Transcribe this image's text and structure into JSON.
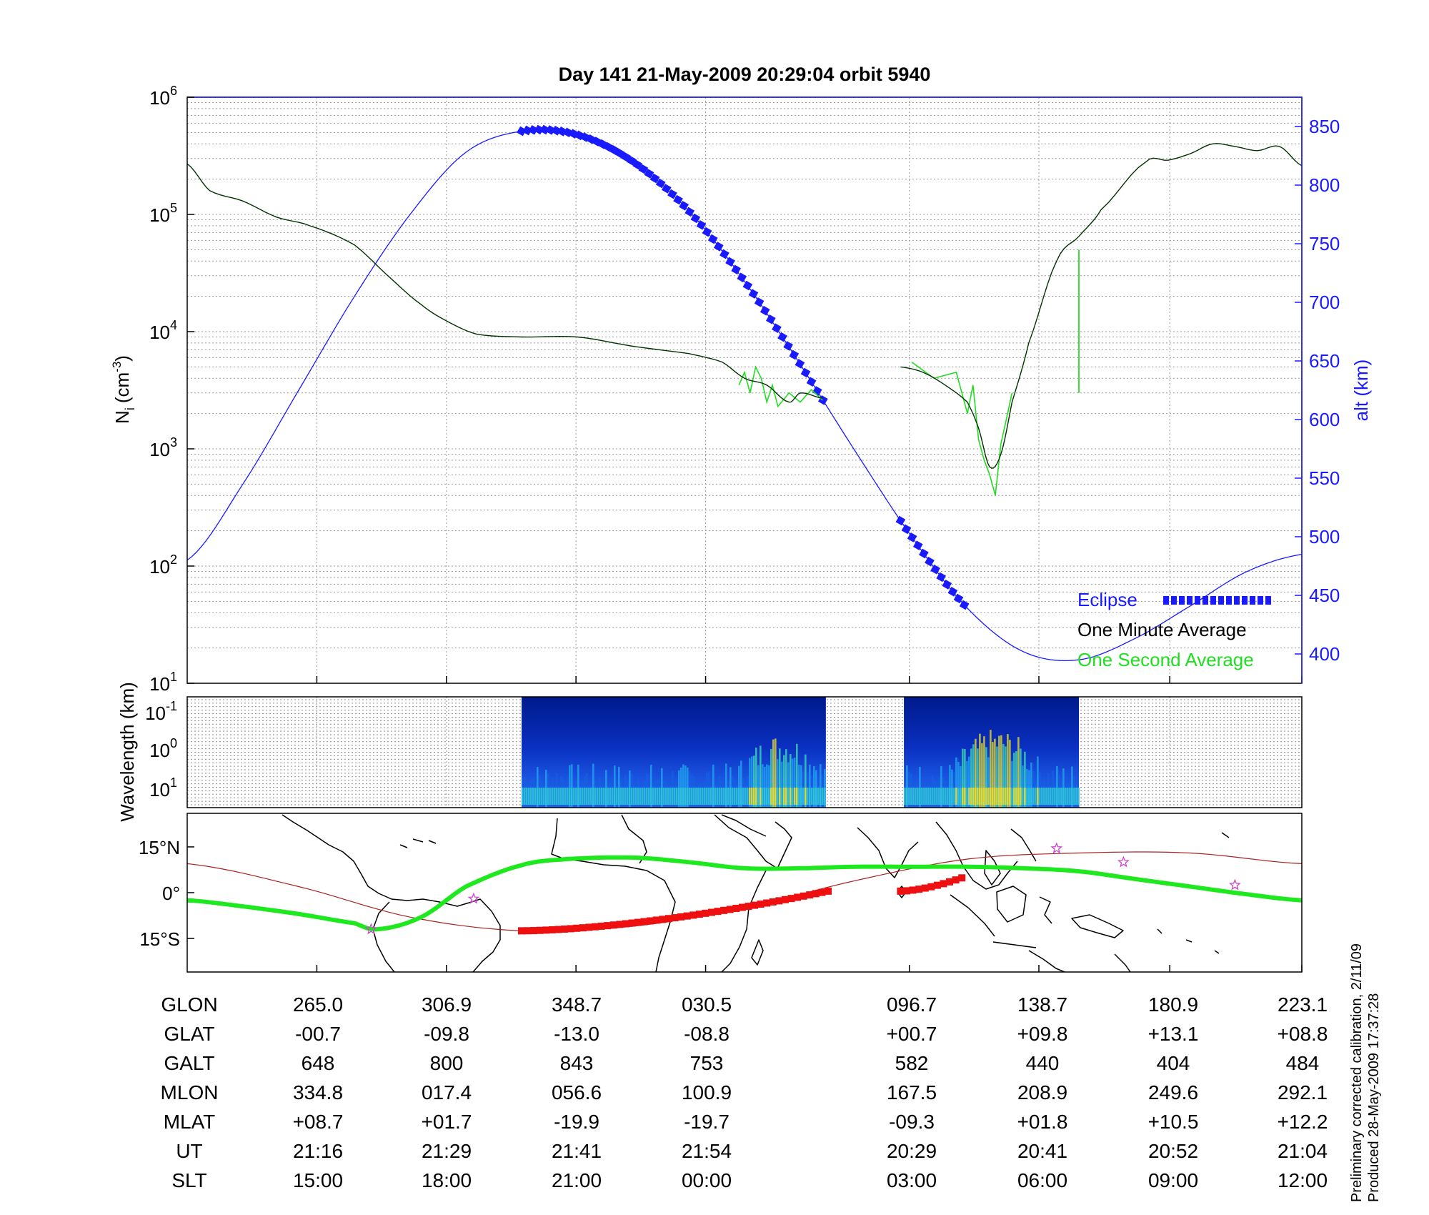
{
  "title": "Day 141  21-May-2009 20:29:04   orbit 5940",
  "colors": {
    "eclipse": "#1a1aff",
    "alt_line": "#1a1aff",
    "minute_avg": "#003300",
    "second_avg": "#22dd22",
    "track_green": "#1ee81e",
    "track_red": "#ee1010",
    "equator": "#aa2222",
    "star": "#cc44cc"
  },
  "chart_data": [
    {
      "type": "line",
      "ylabel_main": "N",
      "ylabel_sub": "i",
      "ylabel_unit_pre": "(cm",
      "ylabel_unit_exp": "-3",
      "ylabel_unit_post": ")",
      "yscale": "log",
      "ylim": [
        10,
        1000000
      ],
      "yticks": [
        {
          "base": "10",
          "exp": "6",
          "value": 1000000
        },
        {
          "base": "10",
          "exp": "5",
          "value": 100000
        },
        {
          "base": "10",
          "exp": "4",
          "value": 10000
        },
        {
          "base": "10",
          "exp": "3",
          "value": 1000
        },
        {
          "base": "10",
          "exp": "2",
          "value": 100
        },
        {
          "base": "10",
          "exp": "1",
          "value": 10
        }
      ],
      "y2label": "alt (km)",
      "y2lim": [
        375,
        875
      ],
      "y2ticks": [
        "850",
        "800",
        "750",
        "700",
        "650",
        "600",
        "550",
        "500",
        "450",
        "400"
      ],
      "xlim": [
        0,
        1
      ],
      "xticks": [
        0.1163,
        0.2326,
        0.3488,
        0.4651,
        0.6479,
        0.7641,
        0.8815,
        1.0
      ],
      "grid": true,
      "legend_position": "bottom-right",
      "legend": [
        "Eclipse",
        "One Minute Average",
        "One Second Average"
      ],
      "series": [
        {
          "name": "One Minute Average",
          "axis": "left",
          "x": [
            0,
            0.02,
            0.05,
            0.08,
            0.11,
            0.15,
            0.18,
            0.21,
            0.235,
            0.26,
            0.3,
            0.35,
            0.4,
            0.45,
            0.48,
            0.5,
            0.52,
            0.54,
            0.55,
            0.57
          ],
          "y": [
            270000,
            160000,
            130000,
            95000,
            80000,
            55000,
            30000,
            17000,
            12000,
            9500,
            9000,
            9000,
            7500,
            6500,
            5500,
            4000,
            3500,
            2500,
            3000,
            2700
          ]
        },
        {
          "name": "One Minute Average",
          "axis": "left",
          "x": [
            0.64,
            0.66,
            0.68,
            0.7,
            0.71,
            0.72,
            0.73,
            0.74,
            0.755,
            0.78,
            0.8,
            0.82,
            0.86,
            0.88,
            0.9,
            0.92,
            0.94,
            0.96,
            0.98,
            1.0
          ],
          "y": [
            5000,
            4500,
            3500,
            2500,
            1500,
            700,
            900,
            2500,
            8000,
            40000,
            65000,
            110000,
            280000,
            290000,
            330000,
            400000,
            380000,
            350000,
            380000,
            260000
          ]
        },
        {
          "name": "One Second Average",
          "axis": "left",
          "x": [
            0.495,
            0.5,
            0.505,
            0.51,
            0.515,
            0.52,
            0.525,
            0.53,
            0.54,
            0.55,
            0.56,
            0.57
          ],
          "y": [
            3500,
            4500,
            3000,
            5000,
            4000,
            2500,
            3500,
            2300,
            3000,
            2500,
            3200,
            2600
          ],
          "spike": {
            "x": 0.8,
            "y_from": 3000,
            "y_to": 50000
          }
        },
        {
          "name": "One Second Average",
          "axis": "left",
          "x": [
            0.65,
            0.67,
            0.69,
            0.7,
            0.705,
            0.71,
            0.715,
            0.72,
            0.725,
            0.73,
            0.735,
            0.74
          ],
          "y": [
            5500,
            4000,
            4500,
            2000,
            3500,
            1200,
            800,
            600,
            400,
            1100,
            1800,
            3000
          ]
        },
        {
          "name": "alt (km)",
          "axis": "right",
          "x": [
            0.0,
            0.05,
            0.1,
            0.15,
            0.2,
            0.25,
            0.3,
            0.35,
            0.4,
            0.45,
            0.5,
            0.55,
            0.6,
            0.65,
            0.7,
            0.75,
            0.8,
            0.85,
            0.9,
            0.95,
            1.0
          ],
          "y": [
            480,
            545,
            625,
            705,
            775,
            828,
            846,
            843,
            820,
            778,
            718,
            647,
            572,
            500,
            439,
            402,
            395,
            413,
            441,
            470,
            485
          ]
        }
      ],
      "eclipse_ranges": [
        [
          0.3,
          0.575
        ],
        [
          0.64,
          0.7
        ]
      ]
    },
    {
      "type": "heatmap",
      "ylabel": "Wavelength (km)",
      "yticks": [
        {
          "base": "10",
          "exp": "-1"
        },
        {
          "base": "10",
          "exp": "0"
        },
        {
          "base": "10",
          "exp": "1"
        }
      ],
      "data_blocks": [
        [
          0.3,
          0.573
        ],
        [
          0.643,
          0.8
        ]
      ]
    },
    {
      "type": "map",
      "yticks": [
        "15°N",
        "0°",
        "15°S"
      ],
      "ylim": [
        -26,
        26
      ],
      "track_green": {
        "x": [
          0.0,
          0.05,
          0.1,
          0.15,
          0.17,
          0.21,
          0.25,
          0.3,
          0.34,
          0.4,
          0.45,
          0.5,
          0.55,
          0.6,
          0.65,
          0.7,
          0.75,
          0.8,
          0.85,
          0.9,
          0.95,
          1.0
        ],
        "y": [
          -2.5,
          -4.5,
          -7,
          -10,
          -12,
          -8,
          2,
          9,
          11,
          11.5,
          10,
          8,
          8,
          8.5,
          8.5,
          8.5,
          8,
          7,
          4.5,
          2,
          -0.5,
          -2.5
        ]
      },
      "track_red_ranges": [
        [
          0.3,
          0.575
        ],
        [
          0.64,
          0.7
        ]
      ],
      "equator_line": {
        "x": [
          0.0,
          0.1,
          0.2,
          0.3,
          0.4,
          0.5,
          0.6,
          0.7,
          0.8,
          0.9,
          1.0
        ],
        "y": [
          9.5,
          2,
          -8,
          -12.5,
          -11,
          -5,
          4,
          11,
          13,
          13,
          9.5
        ]
      },
      "stars": [
        [
          0.165,
          -12
        ],
        [
          0.257,
          -2
        ],
        [
          0.78,
          14.5
        ],
        [
          0.84,
          10
        ],
        [
          0.94,
          2.5
        ]
      ]
    }
  ],
  "table": {
    "rows": [
      {
        "label": "GLON",
        "values": [
          "265.0",
          "306.9",
          "348.7",
          "030.5",
          "096.7",
          "138.7",
          "180.9",
          "223.1"
        ]
      },
      {
        "label": "GLAT",
        "values": [
          "-00.7",
          "-09.8",
          "-13.0",
          "-08.8",
          "+00.7",
          "+09.8",
          "+13.1",
          "+08.8"
        ]
      },
      {
        "label": "GALT",
        "values": [
          "648",
          "800",
          "843",
          "753",
          "582",
          "440",
          "404",
          "484"
        ]
      },
      {
        "label": "MLON",
        "values": [
          "334.8",
          "017.4",
          "056.6",
          "100.9",
          "167.5",
          "208.9",
          "249.6",
          "292.1"
        ]
      },
      {
        "label": "MLAT",
        "values": [
          "+08.7",
          "+01.7",
          "-19.9",
          "-19.7",
          "-09.3",
          "+01.8",
          "+10.5",
          "+12.2"
        ]
      },
      {
        "label": "UT",
        "values": [
          "21:16",
          "21:29",
          "21:41",
          "21:54",
          "20:29",
          "20:41",
          "20:52",
          "21:04"
        ]
      },
      {
        "label": "SLT",
        "values": [
          "15:00",
          "18:00",
          "21:00",
          "00:00",
          "03:00",
          "06:00",
          "09:00",
          "12:00"
        ]
      }
    ]
  },
  "footnote": {
    "line1": "Preliminary corrected calibration, 2/11/09",
    "line2": "Produced 28-May-2009 17:37:28"
  }
}
